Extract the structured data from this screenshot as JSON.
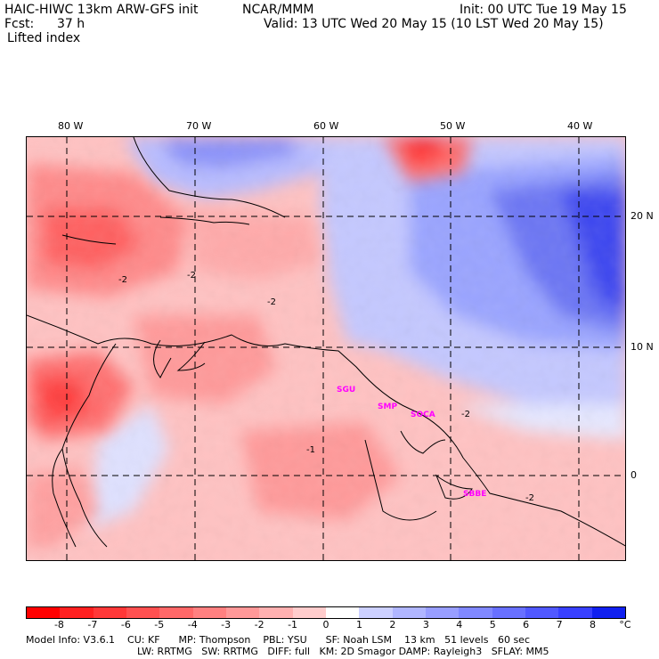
{
  "header": {
    "model": "HAIC-HIWC 13km ARW-GFS init",
    "org": "NCAR/MMM",
    "init": "Init: 00 UTC Tue 19 May 15",
    "fcst_label": "Fcst:",
    "fcst_value": "37 h",
    "valid": "Valid: 13 UTC Wed 20 May 15 (10 LST Wed 20 May 15)",
    "field": "Lifted index"
  },
  "map": {
    "lon_labels": [
      "80 W",
      "70 W",
      "60 W",
      "50 W",
      "40 W"
    ],
    "lat_labels": [
      "20 N",
      "10 N",
      "0"
    ],
    "contour_labels": [
      "-2",
      "-2",
      "-2",
      "-1",
      "-2",
      "-2"
    ],
    "stations": [
      "SGU",
      "SMP",
      "SOCA",
      "SBBE"
    ],
    "colors": {
      "strong_unstable": "#ff2a2a",
      "unstable": "#ff8080",
      "slightly_unstable": "#ffc2c2",
      "neutral": "#ffffff",
      "stable": "#9aa4ff",
      "strong_stable": "#3c46f0"
    }
  },
  "colorbar": {
    "labels": [
      "-8",
      "-7",
      "-6",
      "-5",
      "-4",
      "-3",
      "-2",
      "-1",
      "0",
      "1",
      "2",
      "3",
      "4",
      "5",
      "6",
      "7",
      "8"
    ],
    "unit": "°C",
    "colors": [
      "#ff0000",
      "#ff2020",
      "#ff3838",
      "#ff5050",
      "#ff6868",
      "#ff8080",
      "#ff9898",
      "#ffb0b0",
      "#ffcccc",
      "#ffffff",
      "#ccd0ff",
      "#b0b6ff",
      "#989eff",
      "#8088ff",
      "#6870ff",
      "#5058ff",
      "#3840ff",
      "#1020f0"
    ]
  },
  "footer": {
    "line1": "Model Info: V3.6.1    CU: KF      MP: Thompson    PBL: YSU      SF: Noah LSM    13 km   51 levels   60 sec",
    "line2": "LW: RRTMG   SW: RRTMG   DIFF: full   KM: 2D Smagor DAMP: Rayleigh3   SFLAY: MM5"
  }
}
